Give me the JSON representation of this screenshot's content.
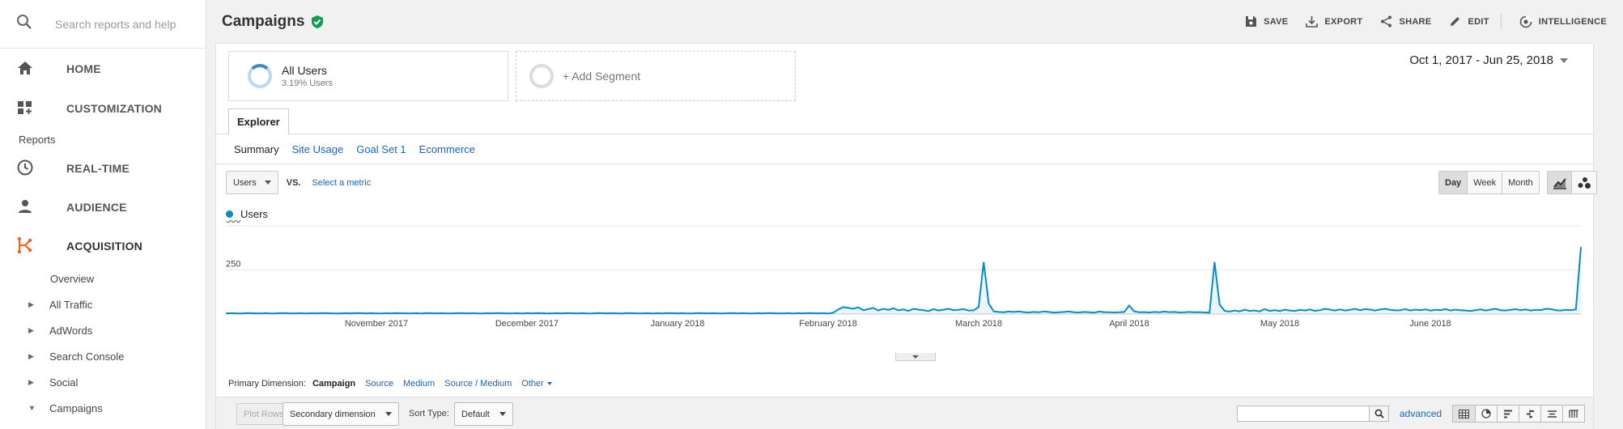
{
  "sidebar": {
    "search_placeholder": "Search reports and help",
    "home_label": "HOME",
    "customization_label": "CUSTOMIZATION",
    "reports_label": "Reports",
    "realtime_label": "REAL-TIME",
    "audience_label": "AUDIENCE",
    "acquisition_label": "ACQUISITION",
    "acquisition_items": [
      {
        "label": "Overview",
        "caret": ""
      },
      {
        "label": "All Traffic",
        "caret": "▶"
      },
      {
        "label": "AdWords",
        "caret": "▶"
      },
      {
        "label": "Search Console",
        "caret": "▶"
      },
      {
        "label": "Social",
        "caret": "▶"
      },
      {
        "label": "Campaigns",
        "caret": "▼"
      }
    ],
    "accent_color": "#f4621f"
  },
  "header": {
    "title": "Campaigns",
    "save": "SAVE",
    "export": "EXPORT",
    "share": "SHARE",
    "edit": "EDIT",
    "intelligence": "INTELLIGENCE"
  },
  "segments": {
    "primary_title": "All Users",
    "primary_sub": "3.19% Users",
    "add_label": "+ Add Segment"
  },
  "date_range": "Oct 1, 2017 - Jun 25, 2018",
  "tabs": {
    "explorer": "Explorer",
    "subtabs": [
      "Summary",
      "Site Usage",
      "Goal Set 1",
      "Ecommerce"
    ]
  },
  "metric": {
    "selected": "Users",
    "vs": "VS.",
    "select_metric": "Select a metric"
  },
  "granularity": [
    "Day",
    "Week",
    "Month"
  ],
  "legend_label": "Users",
  "chart_data": {
    "type": "line",
    "series": [
      {
        "name": "Users"
      }
    ],
    "y_ticks": [
      250,
      500
    ],
    "ylim": [
      0,
      500
    ],
    "x_labels": [
      "November 2017",
      "December 2017",
      "January 2018",
      "February 2018",
      "March 2018",
      "April 2018",
      "May 2018",
      "June 2018"
    ],
    "values": [
      4,
      5,
      4,
      3,
      5,
      6,
      4,
      4,
      5,
      3,
      4,
      6,
      5,
      4,
      4,
      5,
      3,
      5,
      4,
      6,
      5,
      4,
      3,
      4,
      5,
      4,
      6,
      5,
      4,
      5,
      4,
      3,
      5,
      4,
      6,
      5,
      4,
      4,
      5,
      3,
      6,
      5,
      4,
      5,
      4,
      3,
      5,
      6,
      4,
      5,
      4,
      3,
      5,
      4,
      6,
      5,
      4,
      4,
      5,
      3,
      5,
      4,
      6,
      5,
      3,
      4,
      5,
      4,
      6,
      5,
      4,
      5,
      3,
      4,
      6,
      5,
      4,
      5,
      4,
      3,
      6,
      5,
      4,
      4,
      5,
      3,
      5,
      4,
      6,
      5,
      4,
      5,
      3,
      4,
      6,
      5,
      4,
      5,
      4,
      3,
      5,
      6,
      4,
      5,
      4,
      3,
      5,
      4,
      6,
      5,
      4,
      4,
      5,
      3,
      5,
      4,
      6,
      5,
      4,
      5,
      3,
      8,
      25,
      40,
      35,
      30,
      38,
      22,
      28,
      35,
      20,
      30,
      24,
      33,
      21,
      26,
      18,
      30,
      25,
      22,
      17,
      28,
      20,
      25,
      30,
      22,
      24,
      28,
      20,
      21,
      40,
      295,
      60,
      15,
      12,
      10,
      14,
      12,
      15,
      11,
      9,
      12,
      10,
      15,
      12,
      8,
      10,
      12,
      14,
      10,
      9,
      12,
      10,
      8,
      14,
      11,
      10,
      9,
      10,
      12,
      48,
      15,
      10,
      11,
      9,
      12,
      10,
      14,
      11,
      12,
      9,
      10,
      12,
      10,
      11,
      9,
      8,
      295,
      55,
      18,
      14,
      20,
      15,
      25,
      18,
      20,
      15,
      28,
      18,
      22,
      17,
      25,
      20,
      18,
      24,
      20,
      26,
      18,
      22,
      30,
      25,
      20,
      26,
      20,
      24,
      30,
      22,
      28,
      25,
      20,
      26,
      30,
      24,
      21,
      22,
      28,
      20,
      25,
      22,
      26,
      20,
      24,
      22,
      28,
      20,
      25,
      22,
      20,
      18,
      22,
      26,
      20,
      25,
      30,
      22,
      20,
      24,
      28,
      22,
      26,
      20,
      24,
      22,
      30,
      28,
      22,
      20,
      24,
      22,
      26,
      380
    ]
  },
  "primary_dimension": {
    "label": "Primary Dimension:",
    "options": [
      "Campaign",
      "Source",
      "Medium",
      "Source / Medium",
      "Other"
    ]
  },
  "controls": {
    "plot_rows": "Plot Rows",
    "secondary_dimension": "Secondary dimension",
    "sort_type_label": "Sort Type:",
    "sort_type_value": "Default",
    "advanced": "advanced"
  }
}
